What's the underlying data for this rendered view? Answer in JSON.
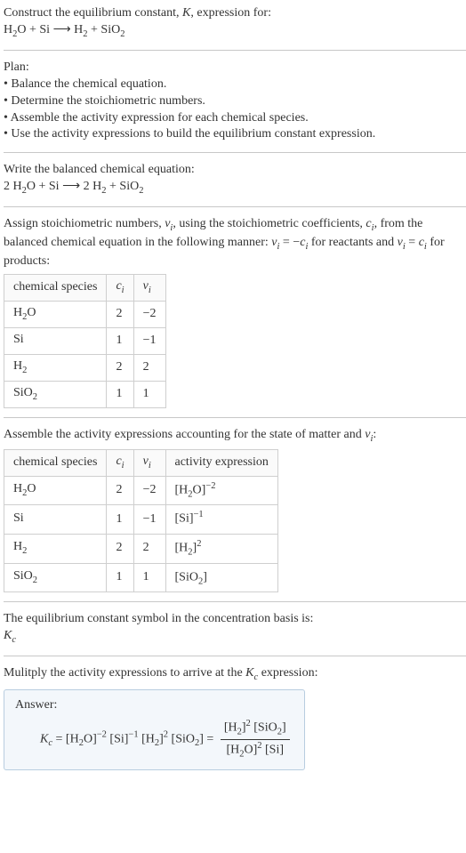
{
  "colors": {
    "text": "#333333",
    "rule": "#c8c8c8",
    "table_border": "#cfcfcf",
    "answer_bg": "#f3f7fb",
    "answer_border": "#b8cde0",
    "page_bg": "#ffffff"
  },
  "fontsizes": {
    "body": 14
  },
  "intro": {
    "line1a": "Construct the equilibrium constant, ",
    "K": "K",
    "line1b": ", expression for:",
    "eq": {
      "lhs1": "H",
      "lhs1_sub": "2",
      "lhs1b": "O + Si",
      "arrow": " ⟶ ",
      "rhs1": "H",
      "rhs1_sub": "2",
      "rhs2": " + SiO",
      "rhs2_sub": "2"
    }
  },
  "plan": {
    "title": "Plan:",
    "b1": "• Balance the chemical equation.",
    "b2": "• Determine the stoichiometric numbers.",
    "b3": "• Assemble the activity expression for each chemical species.",
    "b4": "• Use the activity expressions to build the equilibrium constant expression."
  },
  "balanced": {
    "title": "Write the balanced chemical equation:",
    "eq": {
      "a": "2 H",
      "a_sub": "2",
      "b": "O + Si",
      "arrow": " ⟶ ",
      "c": "2 H",
      "c_sub": "2",
      "d": " + SiO",
      "d_sub": "2"
    }
  },
  "assign": {
    "p1": "Assign stoichiometric numbers, ",
    "nu": "ν",
    "nu_sub": "i",
    "p2": ", using the stoichiometric coefficients, ",
    "c": "c",
    "c_sub": "i",
    "p3": ", from the balanced chemical equation in the following manner: ",
    "eq1a": "ν",
    "eq1a_sub": "i",
    "eq1b": " = −",
    "eq1c": "c",
    "eq1c_sub": "i",
    "p4": " for reactants and ",
    "eq2a": "ν",
    "eq2a_sub": "i",
    "eq2b": " = ",
    "eq2c": "c",
    "eq2c_sub": "i",
    "p5": " for products:"
  },
  "table1": {
    "head": {
      "h1": "chemical species",
      "h2": "c",
      "h2_sub": "i",
      "h3": "ν",
      "h3_sub": "i"
    },
    "rows": [
      {
        "sp_a": "H",
        "sp_sub": "2",
        "sp_b": "O",
        "ci": "2",
        "vi": "−2"
      },
      {
        "sp_a": "Si",
        "sp_sub": "",
        "sp_b": "",
        "ci": "1",
        "vi": "−1"
      },
      {
        "sp_a": "H",
        "sp_sub": "2",
        "sp_b": "",
        "ci": "2",
        "vi": "2"
      },
      {
        "sp_a": "SiO",
        "sp_sub": "2",
        "sp_b": "",
        "ci": "1",
        "vi": "1"
      }
    ]
  },
  "assemble": {
    "p1": "Assemble the activity expressions accounting for the state of matter and ",
    "nu": "ν",
    "nu_sub": "i",
    "p2": ":"
  },
  "table2": {
    "head": {
      "h1": "chemical species",
      "h2": "c",
      "h2_sub": "i",
      "h3": "ν",
      "h3_sub": "i",
      "h4": "activity expression"
    },
    "rows": [
      {
        "sp_a": "H",
        "sp_sub": "2",
        "sp_b": "O",
        "ci": "2",
        "vi": "−2",
        "ae_a": "[H",
        "ae_sub": "2",
        "ae_b": "O]",
        "ae_sup": "−2"
      },
      {
        "sp_a": "Si",
        "sp_sub": "",
        "sp_b": "",
        "ci": "1",
        "vi": "−1",
        "ae_a": "[Si]",
        "ae_sub": "",
        "ae_b": "",
        "ae_sup": "−1"
      },
      {
        "sp_a": "H",
        "sp_sub": "2",
        "sp_b": "",
        "ci": "2",
        "vi": "2",
        "ae_a": "[H",
        "ae_sub": "2",
        "ae_b": "]",
        "ae_sup": "2"
      },
      {
        "sp_a": "SiO",
        "sp_sub": "2",
        "sp_b": "",
        "ci": "1",
        "vi": "1",
        "ae_a": "[SiO",
        "ae_sub": "2",
        "ae_b": "]",
        "ae_sup": ""
      }
    ]
  },
  "concbasis": {
    "line1": "The equilibrium constant symbol in the concentration basis is:",
    "K": "K",
    "K_sub": "c"
  },
  "mult": {
    "p1": "Mulitply the activity expressions to arrive at the ",
    "K": "K",
    "K_sub": "c",
    "p2": " expression:"
  },
  "answer": {
    "label": "Answer:",
    "Kc_a": "K",
    "Kc_sub": "c",
    "eq": " = ",
    "t1a": "[H",
    "t1_sub": "2",
    "t1b": "O]",
    "t1_sup": "−2",
    "t2": " [Si]",
    "t2_sup": "−1",
    "t3a": " [H",
    "t3_sub": "2",
    "t3b": "]",
    "t3_sup": "2",
    "t4a": " [SiO",
    "t4_sub": "2",
    "t4b": "]",
    "eq2": " = ",
    "num_a": "[H",
    "num_a_sub": "2",
    "num_b": "]",
    "num_sup": "2",
    "num_c": " [SiO",
    "num_c_sub": "2",
    "num_d": "]",
    "den_a": "[H",
    "den_a_sub": "2",
    "den_b": "O]",
    "den_sup": "2",
    "den_c": " [Si]"
  }
}
